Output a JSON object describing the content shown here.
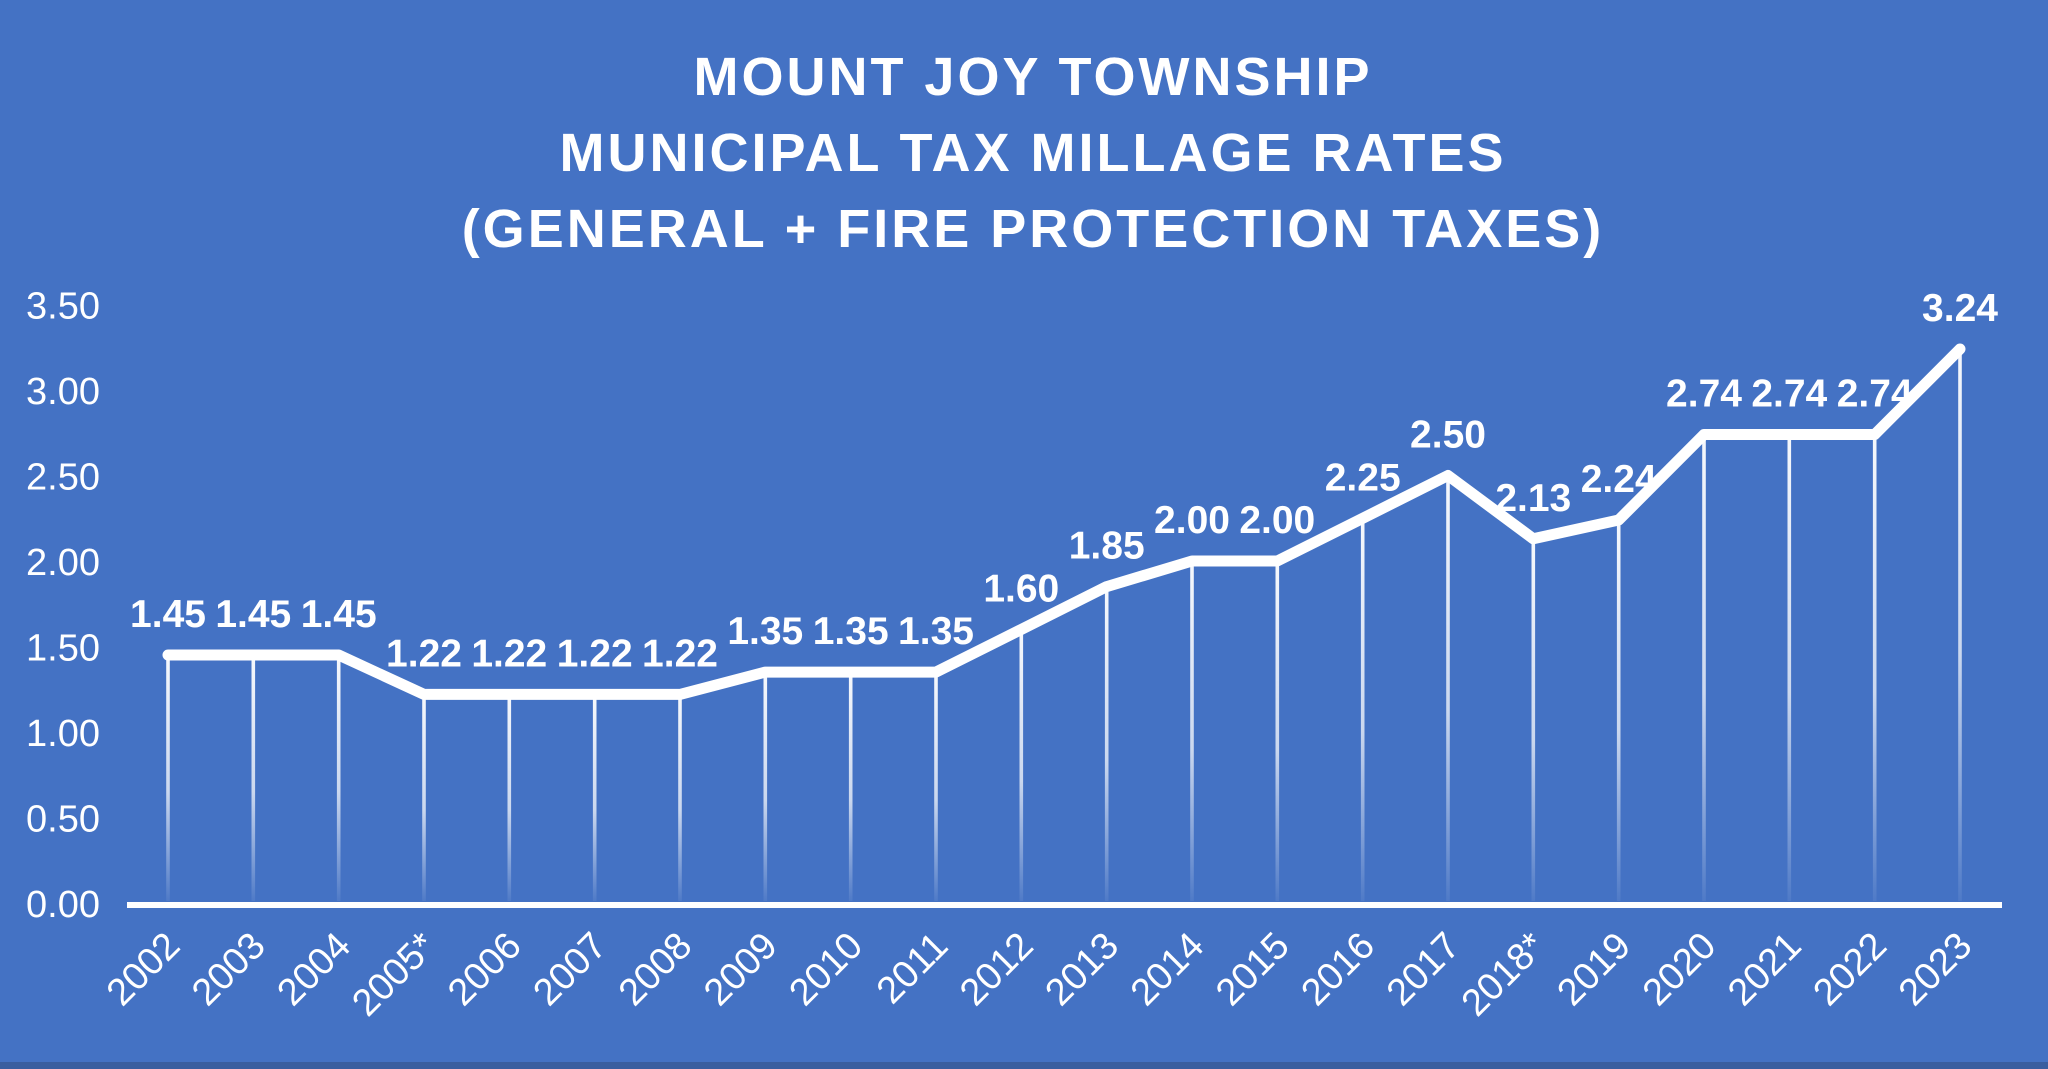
{
  "chart_data": {
    "type": "line",
    "title_lines": [
      "MOUNT JOY TOWNSHIP",
      "MUNICIPAL TAX MILLAGE RATES",
      "(GENERAL + FIRE PROTECTION TAXES)"
    ],
    "categories": [
      "2002",
      "2003",
      "2004",
      "2005*",
      "2006",
      "2007",
      "2008",
      "2009",
      "2010",
      "2011",
      "2012",
      "2013",
      "2014",
      "2015",
      "2016",
      "2017",
      "2018*",
      "2019",
      "2020",
      "2021",
      "2022",
      "2023"
    ],
    "series": [
      {
        "name": "Municipal tax millage rate (general + fire protection)",
        "values": [
          1.45,
          1.45,
          1.45,
          1.22,
          1.22,
          1.22,
          1.22,
          1.35,
          1.35,
          1.35,
          1.6,
          1.85,
          2.0,
          2.0,
          2.25,
          2.5,
          2.13,
          2.24,
          2.74,
          2.74,
          2.74,
          3.24
        ],
        "value_labels": [
          "1.45",
          "1.45",
          "1.45",
          "1.22",
          "1.22",
          "1.22",
          "1.22",
          "1.35",
          "1.35",
          "1.35",
          "1.60",
          "1.85",
          "2.00",
          "2.00",
          "2.25",
          "2.50",
          "2.13",
          "2.24",
          "2.74",
          "2.74",
          "2.74",
          "3.24"
        ]
      }
    ],
    "y_ticks": [
      "3.50",
      "3.00",
      "2.50",
      "2.00",
      "1.50",
      "1.00",
      "0.50",
      "0.00"
    ],
    "y_tick_values": [
      3.5,
      3.0,
      2.5,
      2.0,
      1.5,
      1.0,
      0.5,
      0.0
    ],
    "ylim": [
      0,
      3.5
    ],
    "xlabel": "",
    "ylabel": "",
    "grid": false,
    "legend_position": "none",
    "x_label_rotation_deg": 45,
    "colors": {
      "background": "#4472c4",
      "series_line": "#ffffff",
      "drop_line": "#ffffff",
      "text": "#ffffff",
      "axis_line": "#ffffff",
      "bottom_strip": "#3a5e9f"
    }
  }
}
